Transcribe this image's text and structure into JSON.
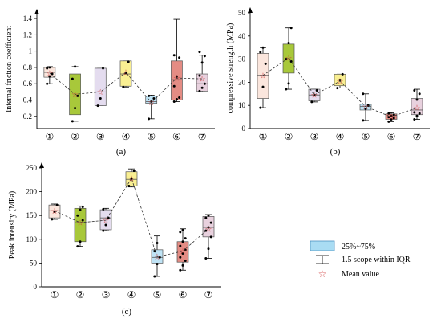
{
  "chart_data": [
    {
      "id": "a",
      "type": "box",
      "panel_label": "(a)",
      "ylabel": "Internal friction coefficient",
      "ylim": [
        0.05,
        1.45
      ],
      "yticks": [
        0.2,
        0.4,
        0.6,
        0.8,
        1.0,
        1.2,
        1.4
      ],
      "ytick_labels": [
        "0.2",
        "0.4",
        "0.6",
        "0.8",
        "1",
        "1.2",
        "1.4"
      ],
      "categories": [
        "①",
        "②",
        "③",
        "④",
        "⑤",
        "⑥",
        "⑦"
      ],
      "box_colors": [
        "#fbe6dd",
        "#a8c83a",
        "#e4dcef",
        "#f9ef92",
        "#bfe3f5",
        "#e48c84",
        "#e8d1de"
      ],
      "boxes": [
        {
          "q1": 0.68,
          "median": 0.74,
          "q3": 0.8,
          "whisker_low": 0.6,
          "whisker_high": 0.81,
          "mean": 0.73,
          "points": [
            0.6,
            0.69,
            0.72,
            0.79,
            0.8
          ]
        },
        {
          "q1": 0.22,
          "median": 0.45,
          "q3": 0.72,
          "whisker_low": 0.14,
          "whisker_high": 0.81,
          "mean": 0.47,
          "points": [
            0.14,
            0.3,
            0.45,
            0.66,
            0.81
          ]
        },
        {
          "q1": 0.33,
          "median": 0.5,
          "q3": 0.79,
          "whisker_low": 0.33,
          "whisker_high": 0.79,
          "mean": 0.5,
          "points": [
            0.33,
            0.42,
            0.79
          ]
        },
        {
          "q1": 0.57,
          "median": 0.72,
          "q3": 0.88,
          "whisker_low": 0.56,
          "whisker_high": 0.88,
          "mean": 0.74,
          "points": [
            0.56,
            0.73,
            0.87
          ]
        },
        {
          "q1": 0.36,
          "median": 0.38,
          "q3": 0.45,
          "whisker_low": 0.17,
          "whisker_high": 0.46,
          "mean": 0.37,
          "points": [
            0.17,
            0.38,
            0.42,
            0.45
          ]
        },
        {
          "q1": 0.4,
          "median": 0.65,
          "q3": 0.88,
          "whisker_low": 0.38,
          "whisker_high": 1.39,
          "mean": 0.67,
          "points": [
            0.38,
            0.41,
            0.43,
            0.57,
            0.69,
            0.92,
            0.95
          ]
        },
        {
          "q1": 0.51,
          "median": 0.6,
          "q3": 0.72,
          "whisker_low": 0.5,
          "whisker_high": 0.95,
          "mean": 0.66,
          "points": [
            0.51,
            0.55,
            0.6,
            0.7,
            0.86,
            0.94,
            0.99
          ]
        }
      ]
    },
    {
      "id": "b",
      "type": "box",
      "panel_label": "(b)",
      "ylabel": "compressive strength (MPa)",
      "ylim": [
        0,
        50
      ],
      "yticks": [
        0,
        10,
        20,
        30,
        40,
        50
      ],
      "ytick_labels": [
        "0",
        "10",
        "20",
        "30",
        "40",
        "50"
      ],
      "categories": [
        "①",
        "②",
        "③",
        "④",
        "⑤",
        "⑥",
        "⑦"
      ],
      "box_colors": [
        "#fbe6dd",
        "#a8c83a",
        "#e4dcef",
        "#f9ef92",
        "#bfe3f5",
        "#e48c84",
        "#e8d1de"
      ],
      "boxes": [
        {
          "q1": 13,
          "median": 23,
          "q3": 32.5,
          "whisker_low": 9,
          "whisker_high": 35,
          "mean": 23,
          "points": [
            9,
            18,
            28,
            33,
            35
          ]
        },
        {
          "q1": 24,
          "median": 30,
          "q3": 36.5,
          "whisker_low": 17,
          "whisker_high": 43.5,
          "mean": 30.5,
          "points": [
            17,
            19.5,
            29,
            30,
            37,
            43.5
          ]
        },
        {
          "q1": 12,
          "median": 14.5,
          "q3": 17,
          "whisker_low": 11.5,
          "whisker_high": 17,
          "mean": 14.5,
          "points": [
            11.5,
            14.5,
            16.5
          ]
        },
        {
          "q1": 18.5,
          "median": 21,
          "q3": 23.5,
          "whisker_low": 17.5,
          "whisker_high": 23.5,
          "mean": 20.5,
          "points": [
            17.5,
            21,
            23.5
          ]
        },
        {
          "q1": 8,
          "median": 9.5,
          "q3": 10.5,
          "whisker_low": 3.5,
          "whisker_high": 15,
          "mean": 9.5,
          "points": [
            3.5,
            8.5,
            10,
            15
          ]
        },
        {
          "q1": 4,
          "median": 5,
          "q3": 6.3,
          "whisker_low": 3,
          "whisker_high": 6.8,
          "mean": 5,
          "points": [
            3,
            4,
            4.5,
            5,
            5.5,
            6,
            6.5
          ]
        },
        {
          "q1": 6,
          "median": 8,
          "q3": 13,
          "whisker_low": 4,
          "whisker_high": 17,
          "mean": 9,
          "points": [
            4,
            5.5,
            6.5,
            7,
            12.5,
            15,
            16.5
          ]
        }
      ]
    },
    {
      "id": "c",
      "type": "box",
      "panel_label": "(c)",
      "ylabel": "Peak intensity (MPa)",
      "ylim": [
        0,
        250
      ],
      "yticks": [
        0,
        50,
        100,
        150,
        200,
        250
      ],
      "ytick_labels": [
        "0",
        "50",
        "100",
        "150",
        "200",
        "250"
      ],
      "categories": [
        "①",
        "②",
        "③",
        "④",
        "⑤",
        "⑥",
        "⑦"
      ],
      "box_colors": [
        "#fbe6dd",
        "#a8c83a",
        "#e4dcef",
        "#f9ef92",
        "#bfe3f5",
        "#e48c84",
        "#e8d1de"
      ],
      "boxes": [
        {
          "q1": 145,
          "median": 160,
          "q3": 172,
          "whisker_low": 142,
          "whisker_high": 174,
          "mean": 160,
          "points": [
            142,
            158,
            172
          ]
        },
        {
          "q1": 95,
          "median": 135,
          "q3": 165,
          "whisker_low": 85,
          "whisker_high": 170,
          "mean": 135,
          "points": [
            85,
            95,
            140,
            150,
            162,
            168
          ]
        },
        {
          "q1": 120,
          "median": 145,
          "q3": 162,
          "whisker_low": 118,
          "whisker_high": 165,
          "mean": 140,
          "points": [
            118,
            130,
            145,
            163
          ]
        },
        {
          "q1": 212,
          "median": 226,
          "q3": 242,
          "whisker_low": 210,
          "whisker_high": 248,
          "mean": 228,
          "points": [
            212,
            228,
            244
          ]
        },
        {
          "q1": 50,
          "median": 62,
          "q3": 78,
          "whisker_low": 22,
          "whisker_high": 107,
          "mean": 63,
          "points": [
            22,
            48,
            62,
            75,
            92
          ]
        },
        {
          "q1": 52,
          "median": 75,
          "q3": 95,
          "whisker_low": 35,
          "whisker_high": 122,
          "mean": 75,
          "points": [
            35,
            45,
            55,
            62,
            70,
            78,
            86,
            95,
            102,
            115,
            120
          ]
        },
        {
          "q1": 105,
          "median": 125,
          "q3": 148,
          "whisker_low": 60,
          "whisker_high": 152,
          "mean": 122,
          "points": [
            60,
            80,
            105,
            118,
            125,
            135,
            145,
            150
          ]
        }
      ]
    }
  ],
  "legend": {
    "items": [
      {
        "label": "25%~75%",
        "kind": "box"
      },
      {
        "label": "1.5 scope within IQR",
        "kind": "whisker"
      },
      {
        "label": "Mean value",
        "kind": "star"
      }
    ]
  },
  "colors": {
    "axis": "#000000",
    "median": "#555555",
    "mean_star": "#d03c3c",
    "mean_line": "#333333",
    "point": "#000000",
    "legend_box_fill": "#a9dcf3",
    "legend_box_stroke": "#4a90c0"
  }
}
